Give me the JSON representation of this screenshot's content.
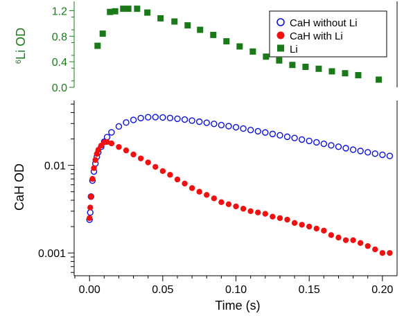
{
  "chart_data": [
    {
      "panel": "top",
      "type": "scatter",
      "ylabel_sup": "6",
      "ylabel": "Li OD",
      "ylim": [
        0.0,
        1.28
      ],
      "yticks": [
        0.0,
        0.4,
        0.8,
        1.2
      ],
      "ytick_labels": [
        "0.0",
        "0.4",
        "0.8",
        "1.2"
      ],
      "xlim": [
        -0.0105,
        0.21
      ],
      "grid": false,
      "series": [
        {
          "name": "Li",
          "marker": "filled-square",
          "color": "#1a7a1a",
          "x": [
            0.0055,
            0.009,
            0.014,
            0.0175,
            0.023,
            0.0265,
            0.0325,
            0.0395,
            0.0485,
            0.058,
            0.067,
            0.0755,
            0.0845,
            0.0935,
            0.1025,
            0.1115,
            0.1205,
            0.1295,
            0.1385,
            0.1475,
            0.1565,
            0.1655,
            0.1745,
            0.1835,
            0.1975
          ],
          "y": [
            0.65,
            0.84,
            1.18,
            1.19,
            1.23,
            1.23,
            1.23,
            1.17,
            1.08,
            1.03,
            0.97,
            0.9,
            0.82,
            0.72,
            0.64,
            0.56,
            0.48,
            0.42,
            0.35,
            0.32,
            0.29,
            0.25,
            0.22,
            0.19,
            0.12
          ]
        }
      ]
    },
    {
      "panel": "bottom",
      "type": "scatter",
      "xlabel": "Time (s)",
      "ylabel": "CaH OD",
      "yscale": "log",
      "ylim": [
        0.00055,
        0.055
      ],
      "xlim": [
        -0.0105,
        0.21
      ],
      "xticks": [
        0.0,
        0.05,
        0.1,
        0.15,
        0.2
      ],
      "xtick_labels": [
        "0.00",
        "0.05",
        "0.10",
        "0.15",
        "0.20"
      ],
      "yticks": [
        0.001,
        0.01
      ],
      "ytick_labels": [
        "0.001",
        "0.01"
      ],
      "grid": false,
      "legend_position": "top-right",
      "legend": [
        "CaH without Li",
        "CaH with Li",
        "Li"
      ],
      "series": [
        {
          "name": "CaH without Li",
          "marker": "open-circle",
          "color": "#0a10d8",
          "x": [
            0.0,
            0.0005,
            0.001,
            0.002,
            0.003,
            0.004,
            0.005,
            0.006,
            0.008,
            0.01,
            0.012,
            0.015,
            0.02,
            0.025,
            0.03,
            0.035,
            0.04,
            0.045,
            0.05,
            0.055,
            0.06,
            0.065,
            0.07,
            0.075,
            0.08,
            0.085,
            0.09,
            0.095,
            0.1,
            0.105,
            0.11,
            0.115,
            0.12,
            0.125,
            0.13,
            0.135,
            0.14,
            0.145,
            0.15,
            0.155,
            0.16,
            0.165,
            0.17,
            0.175,
            0.18,
            0.185,
            0.19,
            0.195,
            0.2,
            0.205
          ],
          "y": [
            0.0024,
            0.0029,
            0.0044,
            0.0067,
            0.0085,
            0.0105,
            0.0125,
            0.0141,
            0.0163,
            0.0186,
            0.021,
            0.0238,
            0.0278,
            0.0308,
            0.033,
            0.0346,
            0.0354,
            0.0355,
            0.0352,
            0.0347,
            0.034,
            0.0333,
            0.0324,
            0.0315,
            0.0306,
            0.0297,
            0.0288,
            0.028,
            0.0272,
            0.0263,
            0.0253,
            0.0245,
            0.0237,
            0.0228,
            0.022,
            0.0212,
            0.0205,
            0.0197,
            0.019,
            0.0183,
            0.0176,
            0.0169,
            0.0163,
            0.0157,
            0.0151,
            0.0146,
            0.0141,
            0.0136,
            0.0132,
            0.0128
          ]
        },
        {
          "name": "CaH with Li",
          "marker": "filled-circle",
          "color": "#f01010",
          "x": [
            0.0,
            0.0005,
            0.001,
            0.002,
            0.003,
            0.004,
            0.005,
            0.006,
            0.008,
            0.01,
            0.012,
            0.015,
            0.02,
            0.025,
            0.03,
            0.035,
            0.04,
            0.045,
            0.05,
            0.055,
            0.06,
            0.065,
            0.07,
            0.075,
            0.08,
            0.085,
            0.09,
            0.095,
            0.1,
            0.105,
            0.11,
            0.115,
            0.12,
            0.125,
            0.13,
            0.135,
            0.14,
            0.145,
            0.15,
            0.155,
            0.16,
            0.165,
            0.17,
            0.175,
            0.18,
            0.185,
            0.19,
            0.195,
            0.2,
            0.205
          ],
          "y": [
            0.0025,
            0.0033,
            0.0044,
            0.007,
            0.0093,
            0.0115,
            0.0135,
            0.015,
            0.0168,
            0.0183,
            0.0185,
            0.0178,
            0.0162,
            0.0148,
            0.0133,
            0.012,
            0.0108,
            0.0096,
            0.0086,
            0.0078,
            0.0069,
            0.0062,
            0.0055,
            0.005,
            0.0046,
            0.0042,
            0.0038,
            0.0036,
            0.0034,
            0.0032,
            0.003,
            0.0029,
            0.0028,
            0.0026,
            0.0025,
            0.0024,
            0.0022,
            0.0021,
            0.002,
            0.0019,
            0.0018,
            0.0016,
            0.0015,
            0.0014,
            0.0014,
            0.0013,
            0.0012,
            0.0011,
            0.001,
            0.001
          ]
        }
      ]
    }
  ]
}
